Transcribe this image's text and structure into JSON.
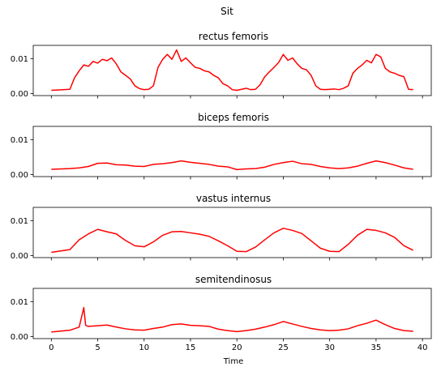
{
  "figure_title": "Sit",
  "xlabel": "Time",
  "chart_data": [
    {
      "type": "line",
      "title": "rectus femoris",
      "color": "#ff0000",
      "xlim": [
        -1.95,
        40.95
      ],
      "ylim": [
        -0.0006,
        0.0138
      ],
      "xticks": [
        0,
        5,
        10,
        15,
        20,
        25,
        30,
        35,
        40
      ],
      "yticks": [
        0.0,
        0.01
      ],
      "ytick_labels": [
        "0.00",
        "0.01"
      ],
      "x": [
        0,
        2,
        2.5,
        3,
        3.5,
        4,
        4.5,
        5,
        5.5,
        6,
        6.5,
        7,
        7.5,
        8,
        8.5,
        9,
        9.5,
        10,
        10.5,
        11,
        11.5,
        12,
        12.5,
        13,
        13.5,
        14,
        14.5,
        15,
        15.5,
        16,
        16.5,
        17,
        17.5,
        18,
        18.5,
        19,
        19.5,
        20,
        20.5,
        21,
        21.5,
        22,
        22.5,
        23,
        23.5,
        24,
        24.5,
        25,
        25.5,
        26,
        26.5,
        27,
        27.5,
        28,
        28.5,
        29,
        29.5,
        30,
        30.5,
        31,
        31.5,
        32,
        32.5,
        33,
        33.5,
        34,
        34.5,
        35,
        35.5,
        36,
        36.5,
        37,
        37.5,
        38,
        38.5,
        39
      ],
      "values": [
        0.0009,
        0.0012,
        0.0045,
        0.0065,
        0.0082,
        0.0078,
        0.0092,
        0.0087,
        0.0098,
        0.0094,
        0.0102,
        0.0085,
        0.0062,
        0.0052,
        0.0042,
        0.0022,
        0.0014,
        0.0011,
        0.0012,
        0.0022,
        0.0075,
        0.0098,
        0.0112,
        0.0098,
        0.0125,
        0.0092,
        0.0102,
        0.0088,
        0.0075,
        0.0072,
        0.0065,
        0.0062,
        0.0052,
        0.0045,
        0.0028,
        0.0022,
        0.0011,
        0.0009,
        0.0012,
        0.0015,
        0.0011,
        0.0012,
        0.0025,
        0.0048,
        0.0062,
        0.0075,
        0.0089,
        0.0112,
        0.0095,
        0.0102,
        0.0085,
        0.0072,
        0.0068,
        0.0052,
        0.0022,
        0.0012,
        0.0011,
        0.0012,
        0.0013,
        0.0011,
        0.0015,
        0.0022,
        0.0058,
        0.0072,
        0.0082,
        0.0095,
        0.0088,
        0.0112,
        0.0105,
        0.0072,
        0.0062,
        0.0058,
        0.0052,
        0.0048,
        0.0012,
        0.0011
      ]
    },
    {
      "type": "line",
      "title": "biceps femoris",
      "color": "#ff0000",
      "xlim": [
        -1.95,
        40.95
      ],
      "ylim": [
        -0.0006,
        0.0138
      ],
      "xticks": [
        0,
        5,
        10,
        15,
        20,
        25,
        30,
        35,
        40
      ],
      "yticks": [
        0.0,
        0.01
      ],
      "ytick_labels": [
        "0.00",
        "0.01"
      ],
      "x": [
        0,
        2,
        3,
        4,
        5,
        6,
        7,
        8,
        9,
        10,
        11,
        12,
        13,
        14,
        15,
        16,
        17,
        18,
        19,
        20,
        21,
        22,
        23,
        24,
        25,
        26,
        27,
        28,
        29,
        30,
        31,
        32,
        33,
        34,
        35,
        36,
        37,
        38,
        39
      ],
      "values": [
        0.0015,
        0.0017,
        0.0019,
        0.0023,
        0.0032,
        0.0033,
        0.0028,
        0.0027,
        0.0024,
        0.0023,
        0.0029,
        0.0031,
        0.0034,
        0.0039,
        0.0035,
        0.0032,
        0.0029,
        0.0024,
        0.0022,
        0.0014,
        0.0016,
        0.0017,
        0.0021,
        0.0029,
        0.0034,
        0.0038,
        0.0031,
        0.0029,
        0.0023,
        0.0019,
        0.0017,
        0.0019,
        0.0024,
        0.0032,
        0.0039,
        0.0034,
        0.0027,
        0.0019,
        0.0015
      ]
    },
    {
      "type": "line",
      "title": "vastus internus",
      "color": "#ff0000",
      "xlim": [
        -1.95,
        40.95
      ],
      "ylim": [
        -0.0006,
        0.0138
      ],
      "xticks": [
        0,
        5,
        10,
        15,
        20,
        25,
        30,
        35,
        40
      ],
      "yticks": [
        0.0,
        0.01
      ],
      "ytick_labels": [
        "0.00",
        "0.01"
      ],
      "x": [
        0,
        2,
        3,
        4,
        5,
        6,
        7,
        8,
        9,
        10,
        11,
        12,
        13,
        14,
        15,
        16,
        17,
        18,
        19,
        20,
        21,
        22,
        23,
        24,
        25,
        26,
        27,
        28,
        29,
        30,
        31,
        32,
        33,
        34,
        35,
        36,
        37,
        38,
        39
      ],
      "values": [
        0.0009,
        0.0017,
        0.0045,
        0.0062,
        0.0075,
        0.0068,
        0.0062,
        0.0043,
        0.0028,
        0.0025,
        0.0039,
        0.0058,
        0.0068,
        0.0069,
        0.0065,
        0.0061,
        0.0055,
        0.0042,
        0.0028,
        0.0012,
        0.0011,
        0.0024,
        0.0045,
        0.0065,
        0.0078,
        0.0072,
        0.0063,
        0.0042,
        0.0021,
        0.0012,
        0.0011,
        0.0032,
        0.0058,
        0.0075,
        0.0072,
        0.0065,
        0.0052,
        0.0028,
        0.0015
      ]
    },
    {
      "type": "line",
      "title": "semitendinosus",
      "color": "#ff0000",
      "xlim": [
        -1.95,
        40.95
      ],
      "ylim": [
        -0.0006,
        0.0138
      ],
      "xticks": [
        0,
        5,
        10,
        15,
        20,
        25,
        30,
        35,
        40
      ],
      "yticks": [
        0.0,
        0.01
      ],
      "ytick_labels": [
        "0.00",
        "0.01"
      ],
      "x": [
        0,
        2,
        3,
        3.5,
        3.7,
        4,
        5,
        6,
        7,
        8,
        9,
        10,
        11,
        12,
        13,
        14,
        15,
        16,
        17,
        18,
        19,
        20,
        21,
        22,
        23,
        24,
        25,
        26,
        27,
        28,
        29,
        30,
        31,
        32,
        33,
        34,
        35,
        36,
        37,
        38,
        39
      ],
      "values": [
        0.0013,
        0.0018,
        0.0027,
        0.0083,
        0.0032,
        0.0029,
        0.0031,
        0.0033,
        0.0027,
        0.0022,
        0.0019,
        0.0018,
        0.0023,
        0.0027,
        0.0034,
        0.0036,
        0.0032,
        0.0031,
        0.0029,
        0.0021,
        0.0017,
        0.0014,
        0.0017,
        0.0021,
        0.0027,
        0.0034,
        0.0043,
        0.0036,
        0.0029,
        0.0023,
        0.0019,
        0.0017,
        0.0018,
        0.0022,
        0.0031,
        0.0038,
        0.0047,
        0.0034,
        0.0023,
        0.0017,
        0.0015
      ]
    }
  ]
}
